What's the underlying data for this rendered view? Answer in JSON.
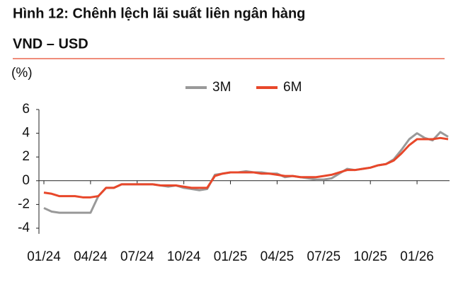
{
  "chart_data": {
    "type": "line",
    "title": [
      "Hình 12: Chênh lệch lãi suất liên ngân hàng",
      "VND – USD"
    ],
    "y_label": "(%)",
    "categories": [
      "01/24",
      null,
      null,
      null,
      null,
      null,
      "04/24",
      null,
      null,
      null,
      null,
      null,
      "07/24",
      null,
      null,
      null,
      null,
      null,
      "10/24",
      null,
      null,
      null,
      null,
      null,
      "01/25",
      null,
      null,
      null,
      null,
      null,
      "04/25",
      null,
      null,
      null,
      null,
      null,
      "07/25",
      null,
      null,
      null,
      null,
      null,
      "10/25",
      null,
      null,
      null,
      null,
      null,
      "01/26",
      null,
      null,
      null,
      null
    ],
    "series": [
      {
        "name": "3M",
        "color": "#999999",
        "values": [
          -2.3,
          -2.6,
          -2.7,
          -2.7,
          -2.7,
          -2.7,
          -2.7,
          -1.3,
          -0.6,
          -0.6,
          -0.3,
          -0.3,
          -0.3,
          -0.3,
          -0.3,
          -0.4,
          -0.5,
          -0.4,
          -0.6,
          -0.7,
          -0.8,
          -0.7,
          0.5,
          0.6,
          0.7,
          0.7,
          0.8,
          0.7,
          0.7,
          0.6,
          0.6,
          0.3,
          0.4,
          0.3,
          0.2,
          0.1,
          0.1,
          0.2,
          0.6,
          1.0,
          0.9,
          1.0,
          1.1,
          1.3,
          1.4,
          1.8,
          2.6,
          3.5,
          4.0,
          3.6,
          3.4,
          4.1,
          3.7
        ]
      },
      {
        "name": "6M",
        "color": "#e8472a",
        "values": [
          -1.0,
          -1.1,
          -1.3,
          -1.3,
          -1.3,
          -1.4,
          -1.4,
          -1.3,
          -0.6,
          -0.6,
          -0.3,
          -0.3,
          -0.3,
          -0.3,
          -0.3,
          -0.4,
          -0.4,
          -0.4,
          -0.5,
          -0.6,
          -0.6,
          -0.6,
          0.4,
          0.6,
          0.7,
          0.7,
          0.7,
          0.7,
          0.6,
          0.6,
          0.5,
          0.4,
          0.4,
          0.3,
          0.3,
          0.3,
          0.4,
          0.5,
          0.7,
          0.9,
          0.9,
          1.0,
          1.1,
          1.3,
          1.4,
          1.7,
          2.3,
          3.0,
          3.5,
          3.5,
          3.5,
          3.6,
          3.5
        ]
      }
    ],
    "ylim": [
      -4,
      6
    ],
    "yticks": [
      -4,
      -2,
      0,
      2,
      4,
      6
    ],
    "grid": false
  }
}
